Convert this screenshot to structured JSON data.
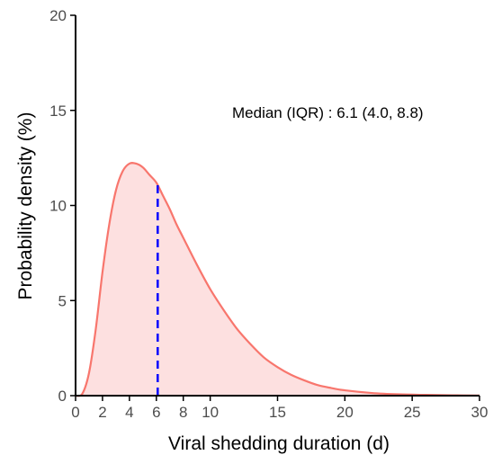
{
  "chart_data": {
    "type": "area",
    "xlabel": "Viral shedding duration (d)",
    "ylabel": "Probability density (%)",
    "xlim": [
      0,
      30
    ],
    "ylim": [
      0,
      20
    ],
    "x_ticks": [
      0,
      2,
      4,
      6,
      8,
      10,
      15,
      20,
      25,
      30
    ],
    "y_ticks": [
      0,
      5,
      10,
      15,
      20
    ],
    "grid": false,
    "annotation": "Median (IQR) : 6.1 (4.0, 8.8)",
    "median_line": {
      "x": 6.1,
      "y": 11.2,
      "style": "dashed",
      "color": "#0000ff"
    },
    "series": [
      {
        "x": [
          0.0,
          0.5,
          1.0,
          1.5,
          2.0,
          2.5,
          3.0,
          3.5,
          4.0,
          4.5,
          5.0,
          5.5,
          6.0,
          6.5,
          7.0,
          7.5,
          8.0,
          9.0,
          10.0,
          11.0,
          12.0,
          13.0,
          14.0,
          15.0,
          16.0,
          17.0,
          18.0,
          19.0,
          20.0,
          22.0,
          24.0,
          26.0,
          28.0,
          30.0
        ],
        "values": [
          0.0,
          0.1,
          1.2,
          3.5,
          6.5,
          9.0,
          10.8,
          11.8,
          12.2,
          12.2,
          12.0,
          11.6,
          11.2,
          10.5,
          9.8,
          9.0,
          8.3,
          6.9,
          5.6,
          4.5,
          3.5,
          2.7,
          2.0,
          1.5,
          1.1,
          0.8,
          0.55,
          0.4,
          0.28,
          0.14,
          0.07,
          0.04,
          0.02,
          0.01
        ],
        "line_color": "#f8766d",
        "fill_color": "#fde0e0"
      }
    ]
  }
}
